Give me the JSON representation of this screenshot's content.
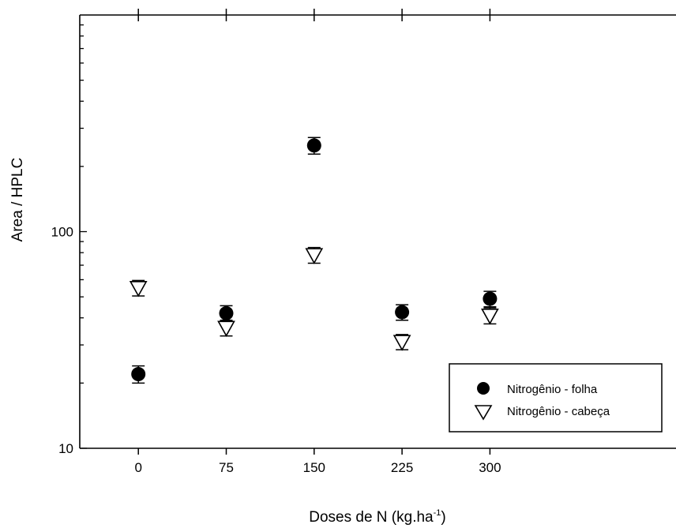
{
  "chart_data": {
    "type": "scatter",
    "xlabel_main": "Doses de N (kg.ha",
    "xlabel_sup": "-1",
    "xlabel_close": ")",
    "ylabel": "Area / HPLC",
    "y_scale": "log",
    "xlim": [
      -50,
      450
    ],
    "ylim": [
      10,
      1000
    ],
    "x_ticks": [
      0,
      75,
      150,
      225,
      300
    ],
    "y_tick_labels": [
      {
        "value": 10,
        "label": "10"
      },
      {
        "value": 100,
        "label": "100"
      }
    ],
    "legend_position": "bottom-right",
    "series": [
      {
        "name": "Nitrogênio -  folha",
        "marker": "filled-circle",
        "color": "#000000",
        "points": [
          {
            "x": 0,
            "y": 22,
            "err": 2
          },
          {
            "x": 75,
            "y": 42,
            "err": 3.5
          },
          {
            "x": 150,
            "y": 250,
            "err": 22
          },
          {
            "x": 225,
            "y": 42.5,
            "err": 3.5
          },
          {
            "x": 300,
            "y": 49,
            "err": 4
          }
        ]
      },
      {
        "name": "Nitrogênio - cabeça",
        "marker": "open-triangle-down",
        "color": "#000000",
        "points": [
          {
            "x": 0,
            "y": 55,
            "err": 4.5
          },
          {
            "x": 75,
            "y": 36,
            "err": 3
          },
          {
            "x": 150,
            "y": 78,
            "err": 6.5
          },
          {
            "x": 225,
            "y": 31,
            "err": 2.5
          },
          {
            "x": 300,
            "y": 41,
            "err": 3.5
          }
        ]
      }
    ]
  }
}
